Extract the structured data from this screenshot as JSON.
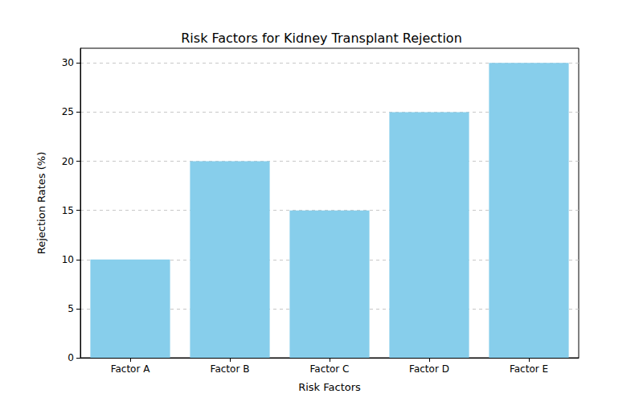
{
  "chart_data": {
    "type": "bar",
    "title": "Risk Factors for Kidney Transplant Rejection",
    "x_label": "Risk Factors",
    "y_label": "Rejection Rates (%)",
    "categories": [
      "Factor A",
      "Factor B",
      "Factor C",
      "Factor D",
      "Factor E"
    ],
    "values": [
      10,
      20,
      15,
      25,
      30
    ],
    "color": "#87ceeb",
    "ylim": [
      0,
      31.5
    ],
    "yticks": [
      0,
      5,
      10,
      15,
      20,
      25,
      30
    ],
    "grid": true
  }
}
